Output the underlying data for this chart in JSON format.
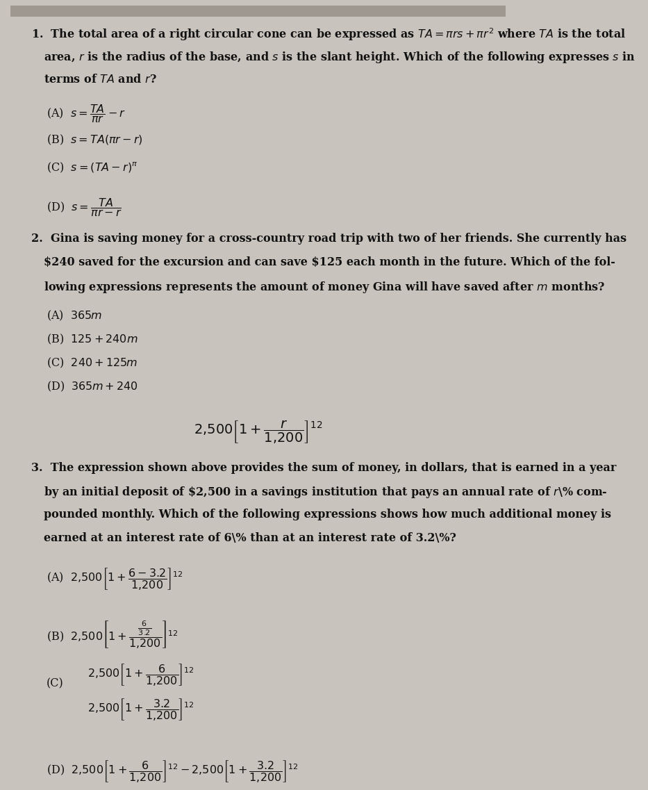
{
  "bg_color": "#d4cfc9",
  "text_color": "#1a1a1a",
  "page_bg": "#c8c2bb",
  "top_bar_color": "#a09890",
  "title_fontsize": 11.5,
  "body_fontsize": 11.5,
  "answer_fontsize": 12,
  "q1_number": "1.",
  "q1_text_line1": "The total area of a right circular cone can be expressed as $TA = \\pi rs + \\pi r^2$ where $TA$ is the total",
  "q1_text_line2": "area, $r$ is the radius of the base, and $s$ is the slant height. Which of the following expresses $s$ in",
  "q1_text_line3": "terms of $TA$ and $r$?",
  "q1_A": "(A)  $s = \\dfrac{TA}{\\pi r} - r$",
  "q1_B": "(B)  $s = TA(\\pi r - r)$",
  "q1_C": "(C)  $s = (TA - r)^{\\pi}$",
  "q1_D_line1": "                   $TA$",
  "q1_D_label": "(D)  $s = \\dfrac{TA}{\\pi r - r}$",
  "q2_number": "2.",
  "q2_text_line1": "Gina is saving money for a cross-country road trip with two of her friends. She currently has",
  "q2_text_line2": "\\$240 saved for the excursion and can save \\$125 each month in the future. Which of the fol-",
  "q2_text_line3": "lowing expressions represents the amount of money Gina will have saved after $m$ months?",
  "q2_A": "(A)  $365m$",
  "q2_B": "(B)  $125 + 240m$",
  "q2_C": "(C)  $240 + 125m$",
  "q2_D": "(D)  $365m + 240$",
  "q3_expr": "$2{,}500\\left[1 + \\dfrac{r}{1{,}200}\\right]^{12}$",
  "q3_number": "3.",
  "q3_text_line1": "The expression shown above provides the sum of money, in dollars, that is earned in a year",
  "q3_text_line2": "by an initial deposit of \\$2,500 in a savings institution that pays an annual rate of $r$\\% com-",
  "q3_text_line3": "pounded monthly. Which of the following expressions shows how much additional money is",
  "q3_text_line4": "earned at an interest rate of 6\\% than at an interest rate of 3.2\\%?",
  "q3_A": "(A)  $2{,}500\\left[1 + \\dfrac{6-3.2}{1{,}200}\\right]^{12}$",
  "q3_B_label": "(B)",
  "q3_C_label": "(C)",
  "q3_D": "(D)  $2{,}500\\left[1 + \\dfrac{6}{1{,}200}\\right]^{12} - 2{,}500\\left[1 + \\dfrac{3.2}{1{,}200}\\right]^{12}$"
}
